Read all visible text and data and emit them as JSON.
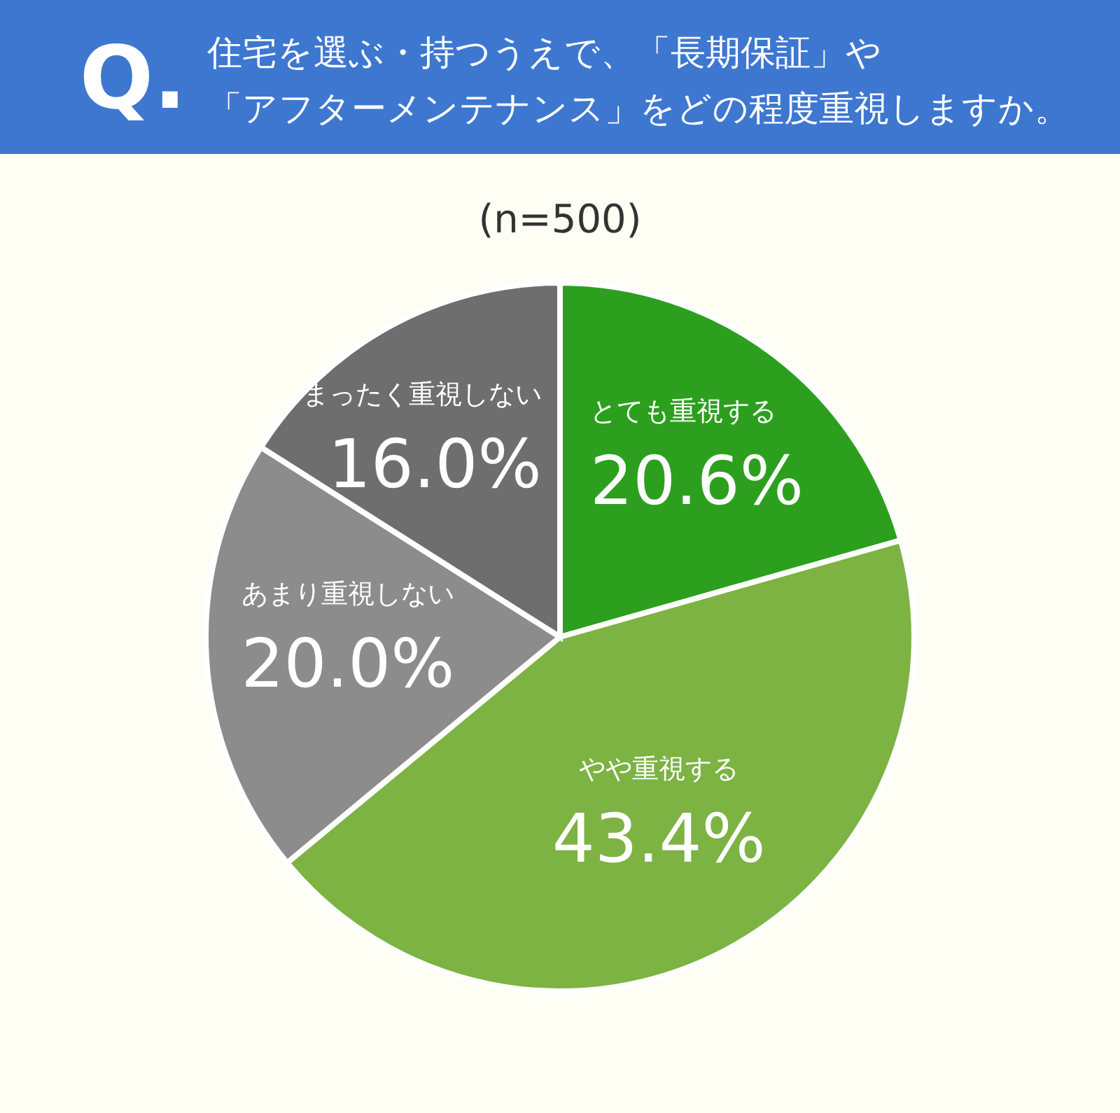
{
  "chart_data": {
    "type": "pie",
    "title": "住宅を選ぶ・持つうえで、「長期保証」や「アフターメンテナンス」をどの程度重視しますか。",
    "subtitle": "(n=500)",
    "annotations": [
      "Q."
    ],
    "categories": [
      "とても重視する",
      "やや重視する",
      "あまり重視しない",
      "まったく重視しない"
    ],
    "values": [
      20.6,
      43.4,
      20.0,
      16.0
    ],
    "colors": [
      "#2ca01e",
      "#7cb342",
      "#8c8c8c",
      "#6e6e6e"
    ],
    "value_labels": [
      "20.6%",
      "43.4%",
      "20.0%",
      "16.0%"
    ]
  }
}
